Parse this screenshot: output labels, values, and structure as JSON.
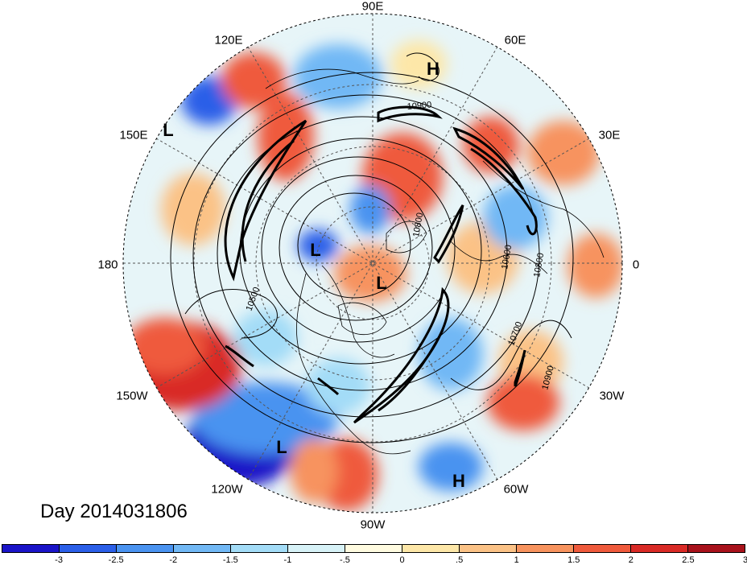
{
  "day_label": "Day 2014031806",
  "longitude_labels": [
    {
      "id": "90e",
      "text": "90E"
    },
    {
      "id": "60e",
      "text": "60E"
    },
    {
      "id": "30e",
      "text": "30E"
    },
    {
      "id": "0",
      "text": "0"
    },
    {
      "id": "30w",
      "text": "30W"
    },
    {
      "id": "60w",
      "text": "60W"
    },
    {
      "id": "90w",
      "text": "90W"
    },
    {
      "id": "120w",
      "text": "120W"
    },
    {
      "id": "150w",
      "text": "150W"
    },
    {
      "id": "180",
      "text": "180"
    },
    {
      "id": "150e",
      "text": "150E"
    },
    {
      "id": "120e",
      "text": "120E"
    }
  ],
  "pressure_markers": [
    {
      "id": "h-top",
      "text": "H"
    },
    {
      "id": "l-west",
      "text": "L"
    },
    {
      "id": "l-center-1",
      "text": "L"
    },
    {
      "id": "l-center-2",
      "text": "L"
    },
    {
      "id": "l-bottom",
      "text": "L"
    },
    {
      "id": "h-bottom",
      "text": "H"
    }
  ],
  "contour_labels": [
    "10900",
    "10500",
    "10600",
    "10800",
    "10700",
    "10900",
    "10800"
  ],
  "colorbar": {
    "colors": [
      "#1a14c8",
      "#2b5fe8",
      "#4a93f0",
      "#71b8f5",
      "#a3dcf7",
      "#d7f2f7",
      "#fffbe0",
      "#fde7a8",
      "#fbc286",
      "#f7935e",
      "#ef5a3c",
      "#d92a26",
      "#a8121b"
    ],
    "tick_labels": [
      "-3",
      "-2.5",
      "-2",
      "-1.5",
      "-1",
      "-.5",
      "0",
      ".5",
      "1",
      "1.5",
      "2",
      "2.5",
      "3"
    ]
  }
}
